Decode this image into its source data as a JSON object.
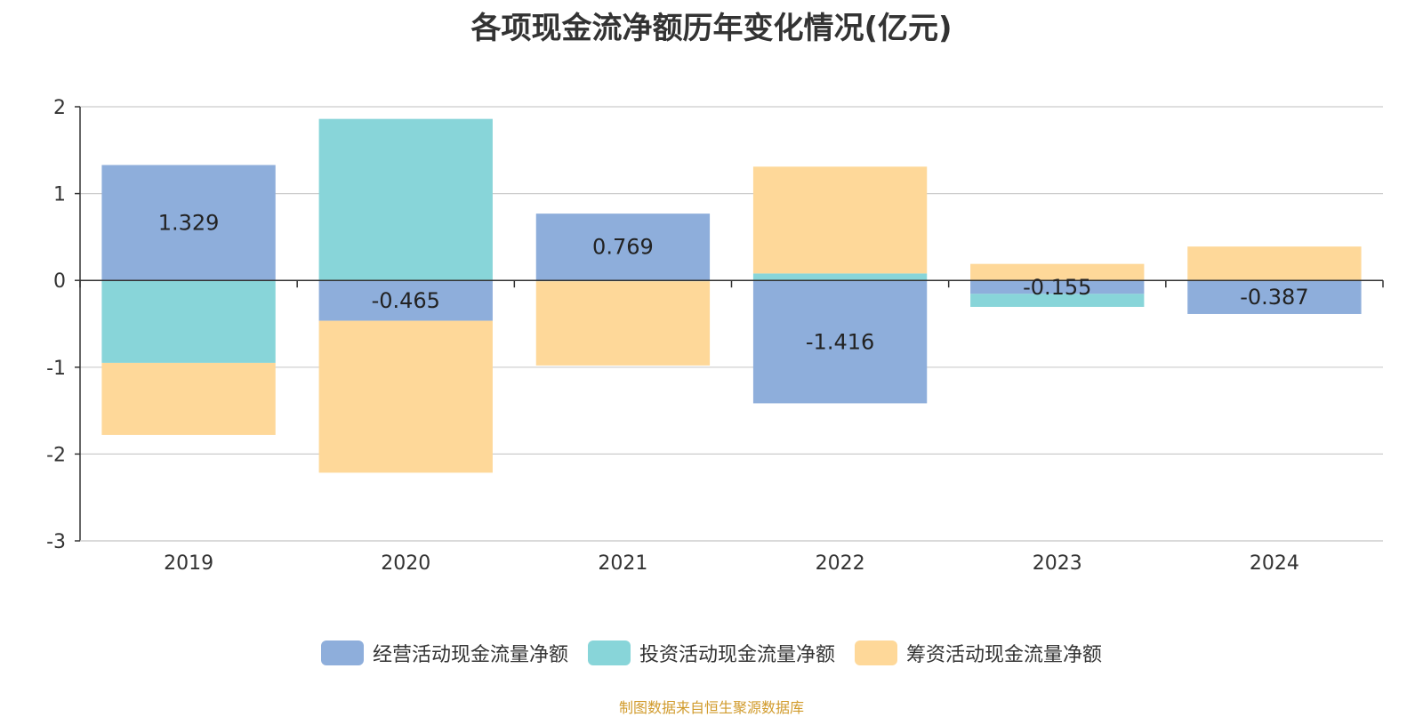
{
  "chart_data": {
    "type": "bar",
    "stacked": true,
    "title": "各项现金流净额历年变化情况(亿元)",
    "categories": [
      "2019",
      "2020",
      "2021",
      "2022",
      "2023",
      "2024"
    ],
    "ylim": [
      -3,
      2
    ],
    "yticks": [
      2,
      1,
      0,
      -1,
      -2,
      -3
    ],
    "grid": true,
    "legend_position": "bottom",
    "series": [
      {
        "name": "经营活动现金流量净额",
        "color": "#8eaedb",
        "values": [
          1.329,
          -0.465,
          0.769,
          -1.416,
          -0.155,
          -0.387
        ],
        "show_labels": true
      },
      {
        "name": "投资活动现金流量净额",
        "color": "#88d5d9",
        "values": [
          -0.95,
          1.86,
          -0.01,
          0.08,
          -0.15,
          0.0
        ],
        "show_labels": false
      },
      {
        "name": "筹资活动现金流量净额",
        "color": "#fed899",
        "values": [
          -0.83,
          -1.75,
          -0.97,
          1.23,
          0.19,
          0.39
        ],
        "show_labels": false
      }
    ]
  },
  "footer": {
    "source": "制图数据来自恒生聚源数据库",
    "source_color": "#d19b2c"
  }
}
